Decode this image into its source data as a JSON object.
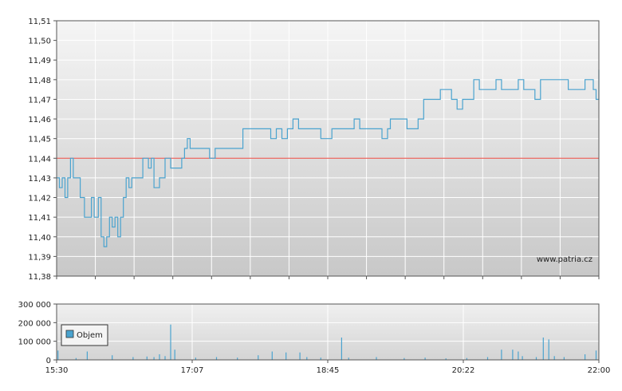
{
  "chart_data": [
    {
      "type": "line",
      "title": "",
      "xlabel": "",
      "ylabel": "",
      "ylim": [
        11.38,
        11.51
      ],
      "y_ticks": [
        "11,38",
        "11,39",
        "11,40",
        "11,41",
        "11,42",
        "11,43",
        "11,44",
        "11,45",
        "11,46",
        "11,47",
        "11,48",
        "11,49",
        "11,50",
        "11,51"
      ],
      "watermark": "www.patria.cz",
      "reference_line": {
        "value": 11.44,
        "color": "#e8453c"
      },
      "series": [
        {
          "color": "#4aa3cf",
          "x": [
            "15:30",
            "15:32",
            "15:34",
            "15:36",
            "15:38",
            "15:40",
            "15:42",
            "15:44",
            "15:47",
            "15:50",
            "15:53",
            "15:55",
            "15:57",
            "16:00",
            "16:02",
            "16:04",
            "16:06",
            "16:08",
            "16:10",
            "16:12",
            "16:14",
            "16:16",
            "16:18",
            "16:20",
            "16:22",
            "16:24",
            "16:26",
            "16:28",
            "16:32",
            "16:36",
            "16:38",
            "16:40",
            "16:44",
            "16:48",
            "16:52",
            "16:56",
            "17:00",
            "17:02",
            "17:04",
            "17:06",
            "17:10",
            "17:16",
            "17:20",
            "17:24",
            "17:28",
            "17:32",
            "17:36",
            "17:40",
            "17:44",
            "17:48",
            "17:52",
            "17:56",
            "18:00",
            "18:04",
            "18:08",
            "18:12",
            "18:16",
            "18:20",
            "18:24",
            "18:28",
            "18:32",
            "18:36",
            "18:40",
            "18:44",
            "18:48",
            "18:52",
            "18:56",
            "19:00",
            "19:04",
            "19:08",
            "19:12",
            "19:16",
            "19:20",
            "19:24",
            "19:28",
            "19:30",
            "19:34",
            "19:38",
            "19:42",
            "19:46",
            "19:50",
            "19:54",
            "19:58",
            "20:02",
            "20:06",
            "20:10",
            "20:14",
            "20:18",
            "20:22",
            "20:26",
            "20:30",
            "20:34",
            "20:38",
            "20:42",
            "20:46",
            "20:50",
            "20:54",
            "20:58",
            "21:02",
            "21:06",
            "21:10",
            "21:14",
            "21:18",
            "21:22",
            "21:26",
            "21:30",
            "21:34",
            "21:38",
            "21:42",
            "21:46",
            "21:50",
            "21:54",
            "21:56",
            "21:58",
            "22:00"
          ],
          "y": [
            11.43,
            11.425,
            11.43,
            11.42,
            11.43,
            11.44,
            11.43,
            11.43,
            11.42,
            11.41,
            11.41,
            11.42,
            11.41,
            11.42,
            11.4,
            11.395,
            11.4,
            11.41,
            11.405,
            11.41,
            11.4,
            11.41,
            11.42,
            11.43,
            11.425,
            11.43,
            11.43,
            11.43,
            11.44,
            11.435,
            11.44,
            11.425,
            11.43,
            11.44,
            11.435,
            11.435,
            11.44,
            11.445,
            11.45,
            11.445,
            11.445,
            11.445,
            11.44,
            11.445,
            11.445,
            11.445,
            11.445,
            11.445,
            11.455,
            11.455,
            11.455,
            11.455,
            11.455,
            11.45,
            11.455,
            11.45,
            11.455,
            11.46,
            11.455,
            11.455,
            11.455,
            11.455,
            11.45,
            11.45,
            11.455,
            11.455,
            11.455,
            11.455,
            11.46,
            11.455,
            11.455,
            11.455,
            11.455,
            11.45,
            11.455,
            11.46,
            11.46,
            11.46,
            11.455,
            11.455,
            11.46,
            11.47,
            11.47,
            11.47,
            11.475,
            11.475,
            11.47,
            11.465,
            11.47,
            11.47,
            11.48,
            11.475,
            11.475,
            11.475,
            11.48,
            11.475,
            11.475,
            11.475,
            11.48,
            11.475,
            11.475,
            11.47,
            11.48,
            11.48,
            11.48,
            11.48,
            11.48,
            11.475,
            11.475,
            11.475,
            11.48,
            11.48,
            11.475,
            11.47,
            11.485
          ]
        }
      ]
    },
    {
      "type": "bar",
      "title": "",
      "xlabel": "",
      "ylabel": "",
      "ylim": [
        0,
        300000
      ],
      "y_ticks": [
        "0",
        "100 000",
        "200 000",
        "300 000"
      ],
      "x_ticks": [
        "15:30",
        "17:07",
        "18:45",
        "20:22",
        "22:00"
      ],
      "legend": {
        "position": "top-left",
        "entries": [
          "Objem"
        ]
      },
      "series": [
        {
          "name": "Objem",
          "color": "#4aa3cf",
          "x": [
            "15:31",
            "15:44",
            "15:52",
            "16:10",
            "16:25",
            "16:35",
            "16:40",
            "16:44",
            "16:48",
            "16:52",
            "16:55",
            "17:10",
            "17:25",
            "17:40",
            "17:55",
            "18:05",
            "18:15",
            "18:25",
            "18:30",
            "18:40",
            "18:55",
            "19:00",
            "19:20",
            "19:40",
            "19:55",
            "20:10",
            "20:25",
            "20:40",
            "20:50",
            "20:58",
            "21:02",
            "21:05",
            "21:15",
            "21:20",
            "21:24",
            "21:28",
            "21:35",
            "21:50",
            "21:58"
          ],
          "values": [
            50000,
            10000,
            45000,
            25000,
            15000,
            18000,
            15000,
            30000,
            20000,
            190000,
            55000,
            12000,
            15000,
            12000,
            25000,
            45000,
            40000,
            40000,
            15000,
            12000,
            120000,
            12000,
            15000,
            10000,
            12000,
            8000,
            10000,
            15000,
            55000,
            55000,
            45000,
            20000,
            15000,
            120000,
            110000,
            20000,
            15000,
            30000,
            50000
          ]
        }
      ]
    }
  ]
}
